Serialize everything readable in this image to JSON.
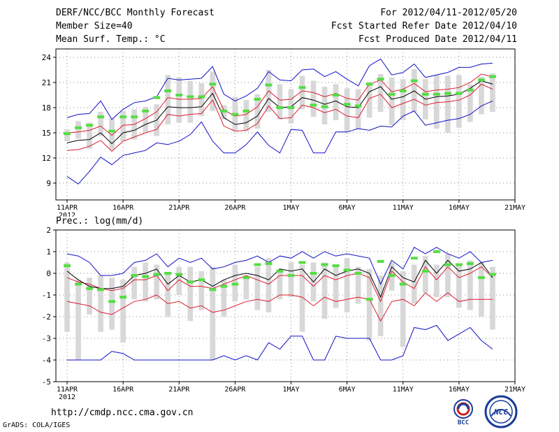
{
  "header": {
    "title": "DERF/NCC/BCC Monthly Forecast",
    "member": "Member Size=40",
    "variable": "Mean Surf. Temp.: °C",
    "forecast_range": "For 2012/04/11-2012/05/20",
    "started": "Fcst Started Refer Date 2012/04/10",
    "produced": "Fcst Produced Date 2012/04/11"
  },
  "precip_label": "Prec.: log(mm/d)",
  "footer": {
    "url": "http://cmdp.ncc.cma.gov.cn",
    "grads": "GrADS: COLA/IGES"
  },
  "logos": {
    "left": "BCC",
    "right": "NCC"
  },
  "colors": {
    "envelope": "#1010c8",
    "spread": "#dd1c30",
    "mean": "#000000",
    "obs": "#55dd44",
    "box": "#d8d8d8"
  },
  "chart_data": [
    {
      "name": "temperature",
      "type": "line",
      "ylabel": "Mean Surf. Temp.: °C",
      "ylim": [
        7,
        25
      ],
      "yticks": [
        9,
        12,
        15,
        18,
        21,
        24
      ],
      "xlim": [
        0,
        40
      ],
      "xticks": [
        {
          "day": 0,
          "label": "11APR",
          "sub": "2012"
        },
        {
          "day": 5,
          "label": "16APR"
        },
        {
          "day": 10,
          "label": "21APR"
        },
        {
          "day": 15,
          "label": "26APR"
        },
        {
          "day": 20,
          "label": "1MAY"
        },
        {
          "day": 25,
          "label": "6MAY"
        },
        {
          "day": 30,
          "label": "11MAY"
        },
        {
          "day": 35,
          "label": "16MAY"
        },
        {
          "day": 40,
          "label": "21MAY"
        }
      ],
      "grid": true,
      "days": [
        0,
        1,
        2,
        3,
        4,
        5,
        6,
        7,
        8,
        9,
        10,
        11,
        12,
        13,
        14,
        15,
        16,
        17,
        18,
        19,
        20,
        21,
        22,
        23,
        24,
        25,
        26,
        27,
        28,
        29,
        30,
        31,
        32,
        33,
        34,
        35,
        36,
        37,
        38
      ],
      "max": [
        16.8,
        17.2,
        17.3,
        18.8,
        16.6,
        17.8,
        18.6,
        18.8,
        19.3,
        21.5,
        21.3,
        21.4,
        21.5,
        22.9,
        19.6,
        18.8,
        19.4,
        20.3,
        22.3,
        21.3,
        21.2,
        22.5,
        22.6,
        21.7,
        22.3,
        21.4,
        20.6,
        23.0,
        23.8,
        21.9,
        22.2,
        23.2,
        21.6,
        21.9,
        22.2,
        22.8,
        22.8,
        23.2,
        23.3
      ],
      "upper": [
        15.0,
        15.1,
        15.3,
        15.8,
        14.7,
        15.9,
        16.0,
        16.7,
        17.5,
        19.2,
        19.0,
        19.0,
        19.1,
        20.5,
        17.7,
        17.0,
        17.2,
        18.1,
        20.0,
        18.9,
        19.0,
        20.0,
        19.8,
        19.3,
        19.7,
        19.1,
        18.9,
        20.8,
        21.3,
        19.9,
        20.2,
        20.9,
        19.9,
        20.1,
        20.2,
        20.4,
        21.0,
        22.0,
        21.7
      ],
      "mean": [
        13.8,
        14.1,
        14.2,
        15.0,
        13.7,
        15.0,
        15.3,
        16.0,
        16.5,
        18.1,
        18.0,
        18.0,
        18.1,
        19.7,
        16.8,
        16.0,
        16.2,
        17.0,
        19.1,
        18.0,
        18.1,
        19.2,
        18.9,
        18.4,
        18.8,
        18.1,
        18.0,
        19.9,
        20.5,
        19.0,
        19.3,
        20.0,
        19.0,
        19.3,
        19.4,
        19.6,
        20.3,
        21.2,
        20.8
      ],
      "lower": [
        12.9,
        13.0,
        13.4,
        14.1,
        12.8,
        14.0,
        14.5,
        15.0,
        15.4,
        17.2,
        17.0,
        17.2,
        17.3,
        18.9,
        15.8,
        15.2,
        15.3,
        16.1,
        18.2,
        16.7,
        16.8,
        18.3,
        18.0,
        17.4,
        17.8,
        17.0,
        16.8,
        19.1,
        19.6,
        18.0,
        18.5,
        19.0,
        18.3,
        18.6,
        18.7,
        18.9,
        19.5,
        20.8,
        20.2
      ],
      "min": [
        9.8,
        8.9,
        10.4,
        12.1,
        11.2,
        12.3,
        12.6,
        12.9,
        13.8,
        13.6,
        14.0,
        14.8,
        16.3,
        14.0,
        12.6,
        12.6,
        13.6,
        15.1,
        13.5,
        12.6,
        15.4,
        15.3,
        12.6,
        12.6,
        15.1,
        15.1,
        15.5,
        15.3,
        15.8,
        15.7,
        17.0,
        17.6,
        15.9,
        16.2,
        16.5,
        16.7,
        17.2,
        18.2,
        18.8
      ],
      "box_top": [
        15.4,
        16.4,
        16.2,
        17.5,
        16.7,
        17.6,
        17.8,
        18.1,
        18.4,
        21.9,
        21.6,
        21.2,
        20.9,
        22.3,
        18.3,
        19.3,
        18.9,
        19.6,
        22.5,
        20.8,
        20.2,
        21.8,
        21.2,
        20.5,
        20.8,
        20.3,
        20.2,
        21.1,
        22.0,
        21.6,
        21.4,
        22.6,
        21.4,
        21.9,
        21.8,
        21.9,
        20.8,
        21.7,
        22.1
      ],
      "box_bottom": [
        14.0,
        14.3,
        13.1,
        14.6,
        13.0,
        14.0,
        14.2,
        15.1,
        14.6,
        16.0,
        16.2,
        16.2,
        17.0,
        17.6,
        16.6,
        15.2,
        15.2,
        15.5,
        17.5,
        16.6,
        16.1,
        17.8,
        16.9,
        16.0,
        16.5,
        15.1,
        15.4,
        16.8,
        17.5,
        15.9,
        16.5,
        17.5,
        16.6,
        15.5,
        15.0,
        15.6,
        16.3,
        17.2,
        17.5
      ],
      "obs": [
        14.9,
        15.6,
        15.9,
        16.9,
        15.2,
        16.9,
        16.9,
        17.6,
        19.2,
        20.0,
        19.5,
        19.3,
        19.3,
        20.8,
        17.6,
        17.2,
        17.6,
        19.0,
        20.7,
        18.0,
        18.0,
        20.4,
        18.3,
        18.1,
        19.5,
        18.4,
        18.2,
        20.8,
        21.4,
        19.6,
        20.0,
        21.2,
        19.6,
        19.6,
        19.7,
        19.7,
        20.1,
        21.3,
        21.7
      ]
    },
    {
      "name": "precipitation",
      "type": "line",
      "ylabel": "Prec.: log(mm/d)",
      "ylim": [
        -5,
        2
      ],
      "yticks": [
        -5,
        -4,
        -3,
        -2,
        -1,
        0,
        1,
        2
      ],
      "xlim": [
        0,
        40
      ],
      "xticks": [
        {
          "day": 0,
          "label": "11APR",
          "sub": "2012"
        },
        {
          "day": 5,
          "label": "16APR"
        },
        {
          "day": 10,
          "label": "21APR"
        },
        {
          "day": 15,
          "label": "26APR"
        },
        {
          "day": 20,
          "label": "1MAY"
        },
        {
          "day": 25,
          "label": "6MAY"
        },
        {
          "day": 30,
          "label": "11MAY"
        },
        {
          "day": 35,
          "label": "16MAY"
        },
        {
          "day": 40,
          "label": "21MAY"
        }
      ],
      "grid": true,
      "days": [
        0,
        1,
        2,
        3,
        4,
        5,
        6,
        7,
        8,
        9,
        10,
        11,
        12,
        13,
        14,
        15,
        16,
        17,
        18,
        19,
        20,
        21,
        22,
        23,
        24,
        25,
        26,
        27,
        28,
        29,
        30,
        31,
        32,
        33,
        34,
        35,
        36,
        37,
        38
      ],
      "max": [
        0.9,
        0.8,
        0.5,
        -0.1,
        -0.1,
        0.0,
        0.5,
        0.6,
        0.9,
        0.3,
        0.7,
        0.5,
        0.7,
        0.2,
        0.3,
        0.5,
        0.6,
        0.8,
        0.5,
        0.8,
        0.7,
        1.0,
        0.7,
        1.0,
        0.8,
        0.9,
        0.8,
        0.7,
        -0.5,
        0.6,
        0.2,
        1.2,
        0.9,
        1.2,
        0.9,
        0.7,
        1.0,
        0.5,
        0.6
      ],
      "mean": [
        0.1,
        -0.3,
        -0.6,
        -0.7,
        -0.7,
        -0.6,
        -0.1,
        0.0,
        0.2,
        -0.5,
        -0.1,
        -0.4,
        -0.3,
        -0.6,
        -0.3,
        -0.1,
        0.0,
        -0.1,
        -0.3,
        0.2,
        0.1,
        0.2,
        -0.4,
        0.2,
        -0.1,
        0.1,
        0.2,
        0.0,
        -1.1,
        0.3,
        -0.2,
        -0.4,
        0.6,
        0.0,
        0.6,
        0.1,
        0.2,
        0.5,
        -0.2
      ],
      "upper": [
        -0.2,
        -0.4,
        -0.5,
        -0.7,
        -0.8,
        -0.7,
        -0.3,
        -0.3,
        -0.1,
        -0.8,
        -0.3,
        -0.6,
        -0.6,
        -0.7,
        -0.5,
        -0.3,
        -0.1,
        -0.3,
        -0.5,
        -0.1,
        -0.1,
        -0.1,
        -0.6,
        -0.1,
        -0.3,
        -0.1,
        0.0,
        -0.2,
        -1.3,
        0.1,
        -0.4,
        -0.7,
        0.3,
        -0.3,
        0.3,
        -0.2,
        0.0,
        0.3,
        -0.2
      ],
      "lower": [
        -1.3,
        -1.4,
        -1.5,
        -1.8,
        -1.9,
        -1.6,
        -1.3,
        -1.2,
        -1.0,
        -1.4,
        -1.3,
        -1.6,
        -1.5,
        -1.8,
        -1.7,
        -1.5,
        -1.3,
        -1.2,
        -1.3,
        -1.0,
        -1.0,
        -1.1,
        -1.5,
        -1.1,
        -1.3,
        -1.2,
        -1.1,
        -1.2,
        -2.2,
        -1.3,
        -1.2,
        -1.5,
        -0.9,
        -1.3,
        -0.9,
        -1.3,
        -1.2,
        -1.2,
        -1.2
      ],
      "min": [
        -4.0,
        -4.0,
        -4.0,
        -4.0,
        -3.6,
        -3.7,
        -4.0,
        -4.0,
        -4.0,
        -4.0,
        -4.0,
        -4.0,
        -4.0,
        -4.0,
        -3.8,
        -4.0,
        -3.8,
        -4.0,
        -3.2,
        -3.5,
        -2.9,
        -2.9,
        -4.0,
        -4.0,
        -2.9,
        -3.0,
        -3.0,
        -3.0,
        -4.0,
        -4.0,
        -3.8,
        -2.5,
        -2.6,
        -2.4,
        -3.1,
        -2.8,
        -2.5,
        -3.1,
        -3.5
      ],
      "box_top": [
        0.5,
        -0.3,
        -0.2,
        -0.1,
        -0.2,
        -0.3,
        0.3,
        0.5,
        0.4,
        0.0,
        0.3,
        0.3,
        0.1,
        0.3,
        -0.3,
        0.4,
        -0.1,
        0.3,
        0.7,
        0.2,
        0.5,
        0.4,
        0.5,
        0.5,
        0.3,
        0.7,
        0.3,
        0.2,
        -0.1,
        0.5,
        0.1,
        0.4,
        0.8,
        0.4,
        0.9,
        0.4,
        0.6,
        0.5,
        0.3
      ],
      "box_bottom": [
        -2.7,
        -4.0,
        -1.9,
        -2.7,
        -2.6,
        -3.2,
        -1.2,
        -1.3,
        -1.2,
        -2.0,
        -1.0,
        -2.2,
        -1.7,
        -4.0,
        -2.0,
        -1.3,
        -1.2,
        -1.7,
        -1.8,
        -1.2,
        -1.1,
        -2.7,
        -1.3,
        -2.1,
        -1.6,
        -1.8,
        -1.4,
        -3.1,
        -2.9,
        -0.8,
        -3.4,
        -1.4,
        -0.9,
        -1.1,
        -1.1,
        -1.6,
        -1.7,
        -2.0,
        -2.6
      ],
      "obs": [
        0.35,
        -0.5,
        -0.7,
        -0.75,
        -1.3,
        -1.1,
        -0.1,
        -0.15,
        -0.05,
        0.0,
        -0.05,
        -0.4,
        -0.3,
        -0.75,
        -0.6,
        -0.5,
        -0.2,
        0.4,
        0.45,
        0.1,
        -0.1,
        0.5,
        0.0,
        0.4,
        0.35,
        0.15,
        0.0,
        -1.2,
        0.55,
        -0.1,
        -0.5,
        0.7,
        0.1,
        1.0,
        0.4,
        0.4,
        0.45,
        -0.2,
        -0.05
      ]
    }
  ]
}
